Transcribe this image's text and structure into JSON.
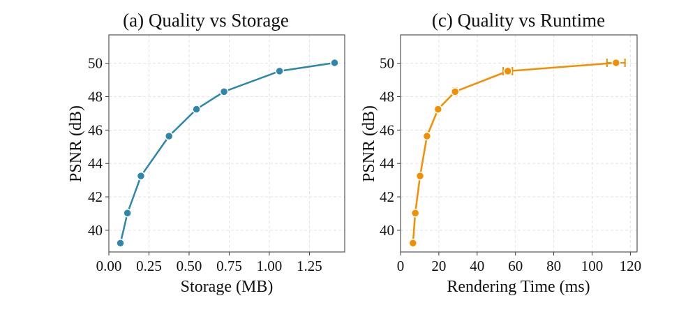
{
  "colors": {
    "storage": "#2e86ab",
    "runtime": "#f18f01"
  },
  "chart_data": [
    {
      "type": "line",
      "title": "(a) Quality vs Storage",
      "xlabel": "Storage (MB)",
      "ylabel": "PSNR (dB)",
      "xlim": [
        0,
        1.47
      ],
      "ylim": [
        38.7,
        51.7
      ],
      "xticks": [
        "0.00",
        "0.25",
        "0.50",
        "0.75",
        "1.00",
        "1.25"
      ],
      "yticks": [
        "40",
        "42",
        "44",
        "46",
        "48",
        "50"
      ],
      "grid": true,
      "x": [
        0.072,
        0.116,
        0.2,
        0.375,
        0.546,
        0.718,
        1.064,
        1.407
      ],
      "y": [
        39.23,
        41.03,
        43.25,
        45.64,
        47.25,
        48.3,
        49.53,
        50.03
      ]
    },
    {
      "type": "line",
      "title": "(c) Quality vs Runtime",
      "xlabel": "Rendering Time (ms)",
      "ylabel": "PSNR (dB)",
      "xlim": [
        0,
        123.5
      ],
      "ylim": [
        38.7,
        51.7
      ],
      "xticks": [
        "0",
        "20",
        "40",
        "60",
        "80",
        "100",
        "120"
      ],
      "yticks": [
        "40",
        "42",
        "44",
        "46",
        "48",
        "50"
      ],
      "grid": true,
      "x": [
        6.5,
        7.7,
        10.2,
        13.8,
        19.6,
        28.5,
        56.0,
        112.5
      ],
      "y": [
        39.23,
        41.03,
        43.25,
        45.64,
        47.25,
        48.3,
        49.53,
        50.03
      ],
      "x_error": [
        0.3,
        0.3,
        0.3,
        0.4,
        0.6,
        0.9,
        2.4,
        4.7
      ]
    }
  ]
}
